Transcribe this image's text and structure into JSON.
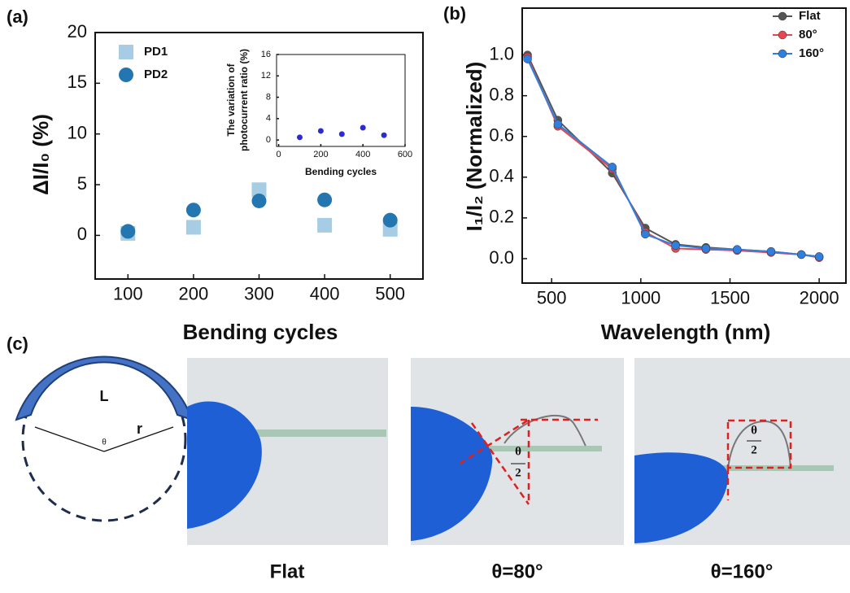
{
  "chart_data": [
    {
      "type": "scatter",
      "title": "(a)",
      "xlabel": "Bending cycles",
      "ylabel": "ΔI/I₀ (%)",
      "x": [
        100,
        200,
        300,
        400,
        500
      ],
      "xlim": [
        50,
        550
      ],
      "xticks": [
        100,
        200,
        300,
        400,
        500
      ],
      "ylim": [
        -4.3,
        20
      ],
      "yticks": [
        0,
        5,
        10,
        15,
        20
      ],
      "series": [
        {
          "name": "PD1",
          "color": "#a6cde3",
          "marker": "square",
          "values": [
            0.2,
            0.8,
            4.5,
            1.0,
            0.6
          ]
        },
        {
          "name": "PD2",
          "color": "#2476b0",
          "marker": "circle",
          "values": [
            0.4,
            2.5,
            3.4,
            3.5,
            1.5
          ]
        }
      ]
    },
    {
      "type": "scatter",
      "xlabel": "Bending cycles",
      "ylabel": [
        "The variation of",
        "photocurrent ratio (%)"
      ],
      "x": [
        100,
        200,
        300,
        400,
        500
      ],
      "xlim": [
        -10,
        600
      ],
      "xticks": [
        0,
        200,
        400,
        600
      ],
      "ylim": [
        -1.2,
        16
      ],
      "yticks": [
        0,
        4,
        8,
        12,
        16
      ],
      "series": [
        {
          "color": "#2b2bd0",
          "marker": "circle",
          "values": [
            0.5,
            1.7,
            1.1,
            2.3,
            0.9
          ]
        }
      ]
    },
    {
      "type": "line",
      "title": "(b)",
      "xlabel": "Wavelength (nm)",
      "ylabel": "I₁/I₂ (Normalized)",
      "x": [
        365,
        535,
        840,
        1025,
        1195,
        1365,
        1540,
        1730,
        1900,
        2000
      ],
      "xlim": [
        335,
        2150
      ],
      "xticks": [
        500,
        1000,
        1500,
        2000
      ],
      "ylim": [
        -0.12,
        1.23
      ],
      "yticks": [
        0.0,
        0.2,
        0.4,
        0.6,
        0.8,
        1.0
      ],
      "series": [
        {
          "name": "Flat",
          "color": "#555555",
          "values": [
            1.0,
            0.68,
            0.42,
            0.15,
            0.07,
            0.055,
            0.045,
            0.035,
            0.02,
            0.01
          ]
        },
        {
          "name": "80°",
          "color": "#e8474f",
          "values": [
            0.99,
            0.65,
            0.44,
            0.13,
            0.05,
            0.045,
            0.04,
            0.03,
            0.02,
            0.005
          ]
        },
        {
          "name": "160°",
          "color": "#2f7fe0",
          "values": [
            0.98,
            0.66,
            0.45,
            0.12,
            0.065,
            0.05,
            0.045,
            0.035,
            0.02,
            0.01
          ]
        }
      ]
    }
  ],
  "panel_c": {
    "label": "(c)",
    "diagram": {
      "arc": "L",
      "radius": "r",
      "angle": "θ"
    },
    "photos": [
      {
        "caption": "Flat"
      },
      {
        "caption": "θ=80°",
        "annotation": [
          "θ",
          "2"
        ]
      },
      {
        "caption": "θ=160°",
        "annotation": [
          "θ",
          "2"
        ]
      }
    ]
  }
}
